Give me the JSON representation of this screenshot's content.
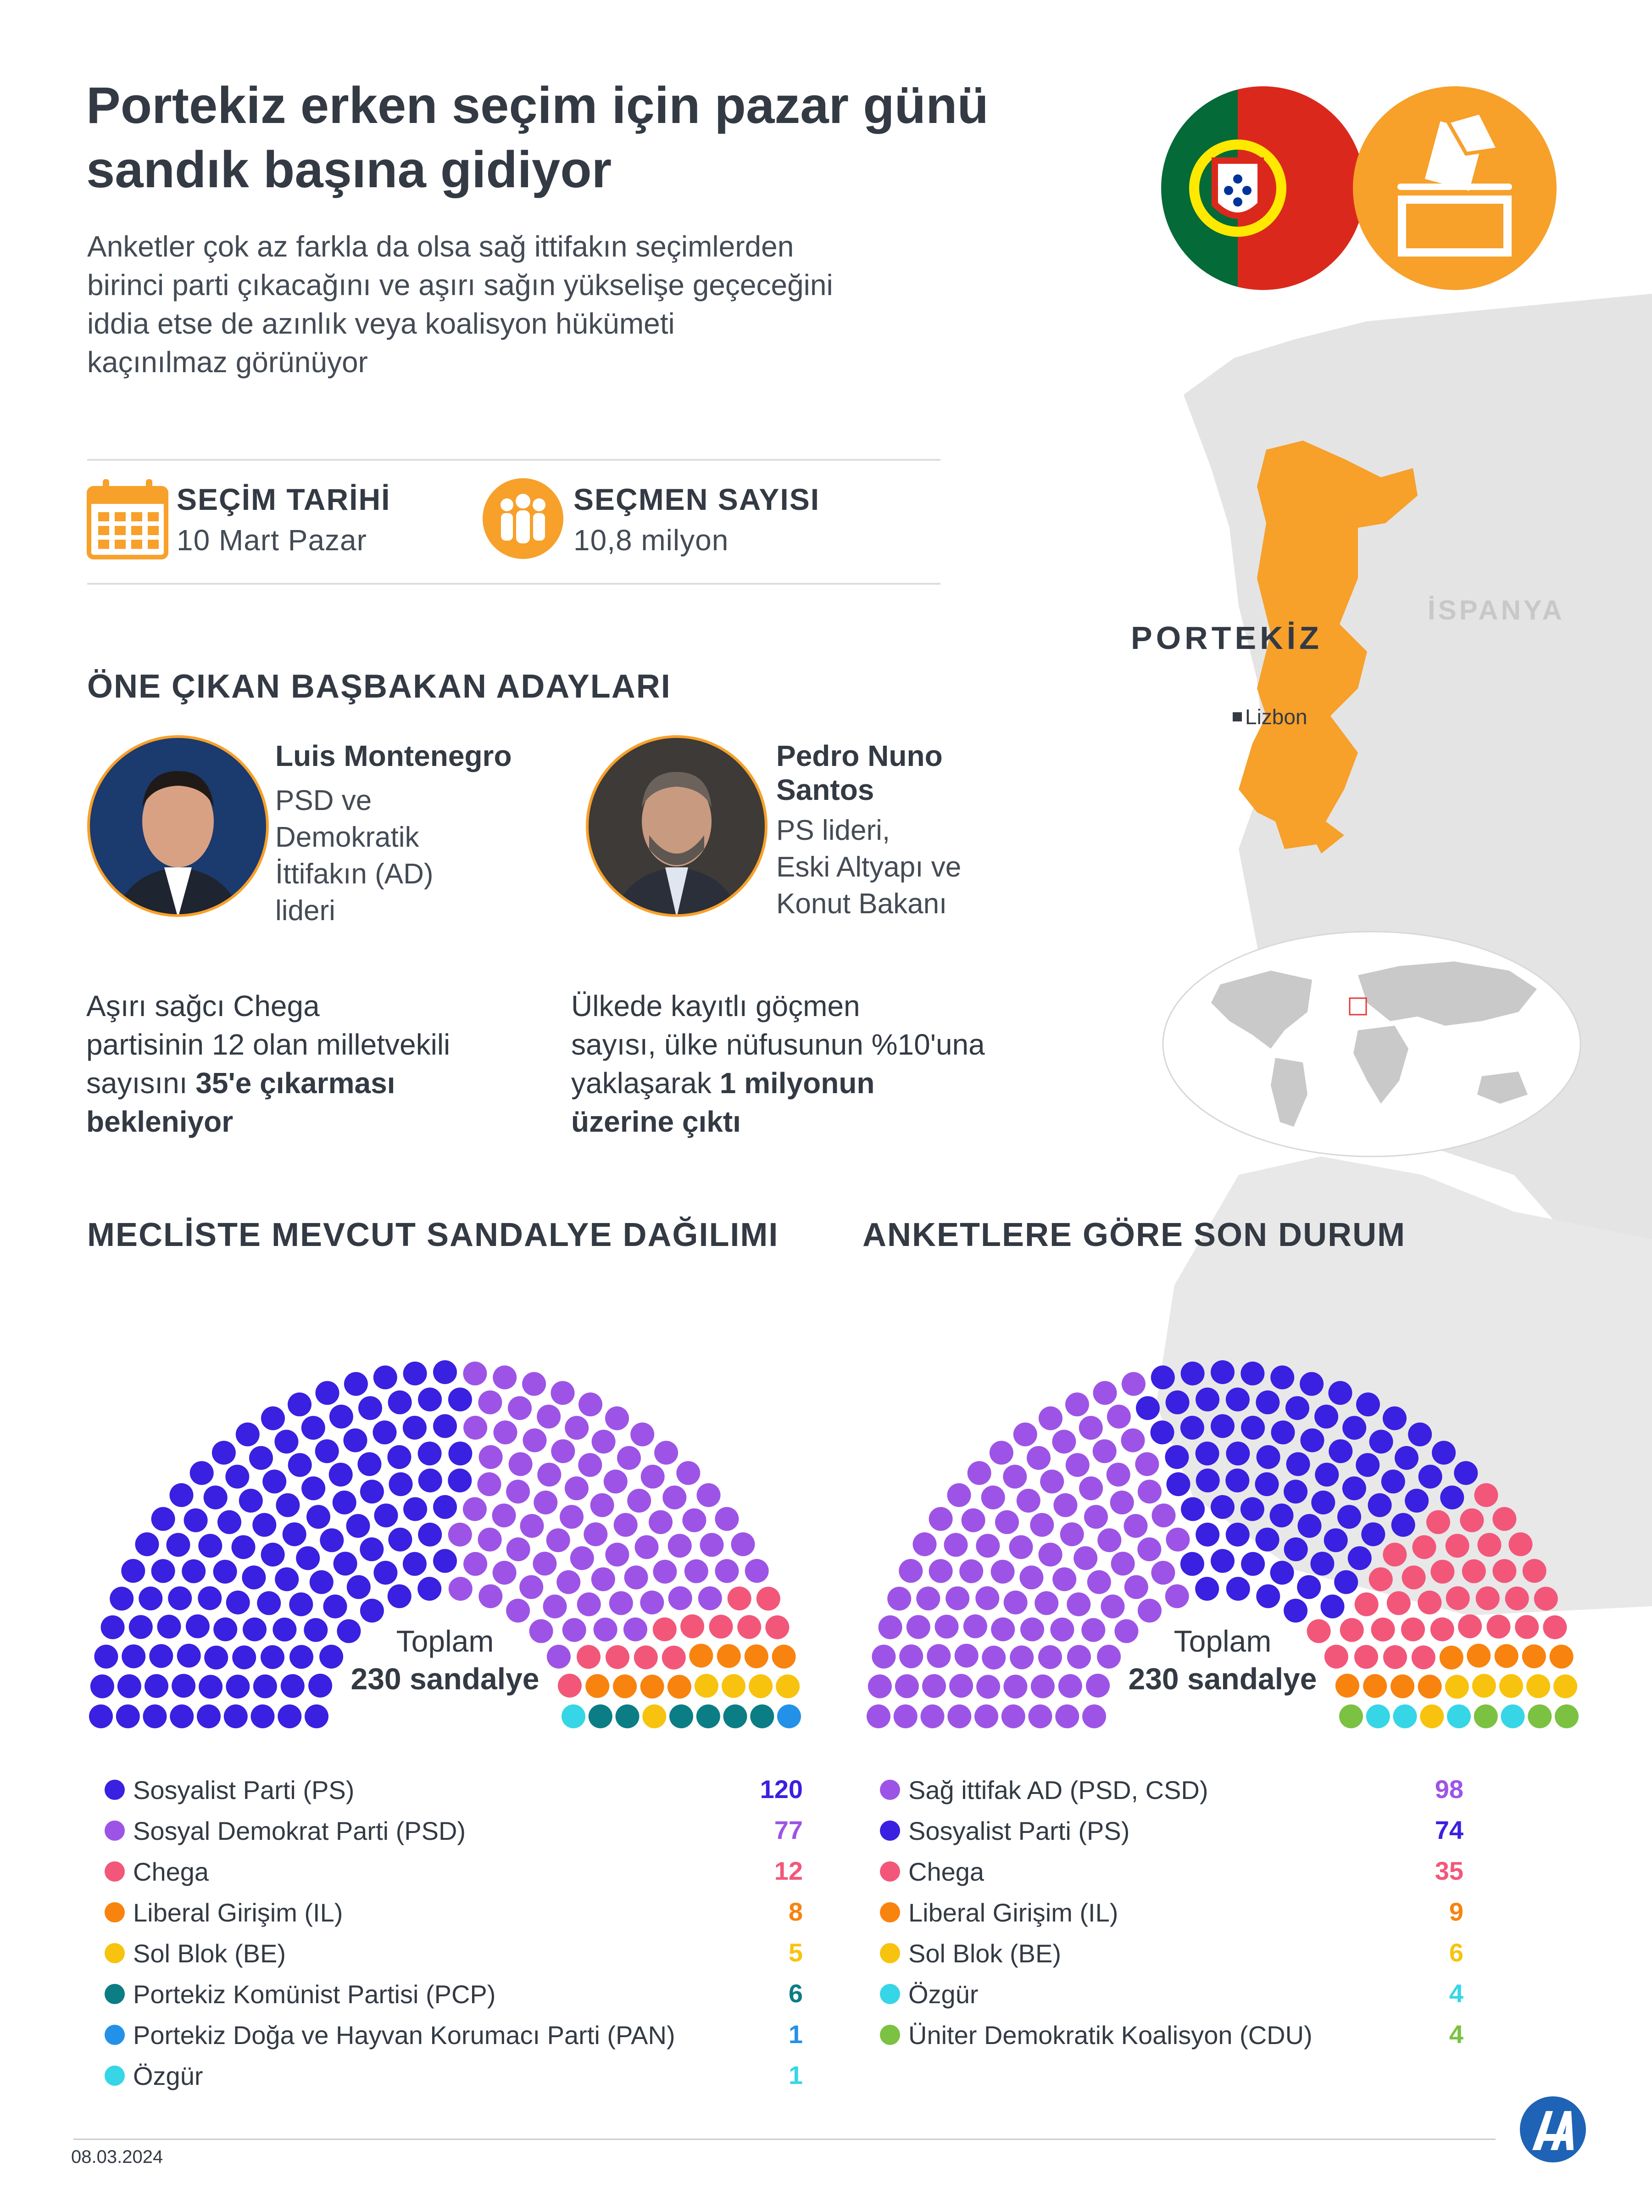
{
  "header": {
    "title_line1": "Portekiz erken seçim için pazar günü",
    "title_line2": "sandık başına gidiyor",
    "subtitle_lines": [
      "Anketler çok az farkla da olsa sağ ittifakın seçimlerden",
      "birinci parti çıkacağını ve aşırı sağın yükselişe geçeceğini",
      "iddia etse de azınlık veya koalisyon hükümeti",
      "kaçınılmaz görünüyor"
    ]
  },
  "stats": {
    "election_date_label": "SEÇİM TARİHİ",
    "election_date_value": "10 Mart Pazar",
    "voters_label": "SEÇMEN SAYISI",
    "voters_value": "10,8 milyon"
  },
  "candidates": {
    "section_title": "ÖNE ÇIKAN BAŞBAKAN ADAYLARI",
    "items": [
      {
        "name_lines": [
          "Luis Montenegro"
        ],
        "desc_lines": [
          "PSD ve",
          "Demokratik",
          "İttifakın (AD)",
          "lideri"
        ]
      },
      {
        "name_lines": [
          "Pedro Nuno",
          "Santos"
        ],
        "desc_lines": [
          "PS lideri,",
          "Eski Altyapı ve",
          "Konut Bakanı"
        ]
      }
    ]
  },
  "facts": {
    "left": {
      "line1": "Aşırı sağcı Chega",
      "line2": "partisinin 12 olan milletvekili",
      "line3_pre": "sayısını ",
      "line3_bold": "35'e çıkarması",
      "line4_bold": "bekleniyor"
    },
    "right": {
      "line1": "Ülkede kayıtlı göçmen",
      "line2": "sayısı, ülke nüfusunun %10'una",
      "line3_pre": "yaklaşarak ",
      "line3_bold": "1 milyonun",
      "line4_bold": "üzerine çıktı"
    }
  },
  "map": {
    "country_label": "PORTEKİZ",
    "neighbor_label": "İSPANYA",
    "capital_label": "Lizbon",
    "country_color": "#f7a02a",
    "land_color": "#e4e4e4"
  },
  "icons": [
    "portugal-flag-icon",
    "ballot-box-icon",
    "calendar-icon",
    "people-icon",
    "aa-logo-icon"
  ],
  "chart_data": [
    {
      "type": "parliament",
      "title": "MECLİSTE MEVCUT SANDALYE DAĞILIMI",
      "total_line1": "Toplam",
      "total_line2": "230 sandalye",
      "series": [
        {
          "name": "Sosyalist Parti (PS)",
          "value": 120,
          "color": "#3a20e0"
        },
        {
          "name": "Sosyal Demokrat Parti (PSD)",
          "value": 77,
          "color": "#9d54e6"
        },
        {
          "name": "Chega",
          "value": 12,
          "color": "#f2577a"
        },
        {
          "name": "Liberal Girişim (IL)",
          "value": 8,
          "color": "#f8830f"
        },
        {
          "name": "Sol Blok (BE)",
          "value": 5,
          "color": "#f7c30e"
        },
        {
          "name": "Portekiz Komünist Partisi (PCP)",
          "value": 6,
          "color": "#0b7d85"
        },
        {
          "name": "Portekiz Doğa ve Hayvan Korumacı Parti (PAN)",
          "value": 1,
          "color": "#2391e8"
        },
        {
          "name": "Özgür",
          "value": 1,
          "color": "#36d6e6"
        }
      ]
    },
    {
      "type": "parliament",
      "title": "ANKETLERE GÖRE SON DURUM",
      "total_line1": "Toplam",
      "total_line2": "230 sandalye",
      "series": [
        {
          "name": "Sağ ittifak AD (PSD, CSD)",
          "value": 98,
          "color": "#9d54e6"
        },
        {
          "name": "Sosyalist Parti (PS)",
          "value": 74,
          "color": "#3a20e0"
        },
        {
          "name": "Chega",
          "value": 35,
          "color": "#f2577a"
        },
        {
          "name": "Liberal Girişim (IL)",
          "value": 9,
          "color": "#f8830f"
        },
        {
          "name": "Sol Blok (BE)",
          "value": 6,
          "color": "#f7c30e"
        },
        {
          "name": "Özgür",
          "value": 4,
          "color": "#36d6e6"
        },
        {
          "name": "Üniter Demokratik Koalisyon (CDU)",
          "value": 4,
          "color": "#7bc142"
        }
      ]
    }
  ],
  "footer": {
    "date": "08.03.2024"
  }
}
